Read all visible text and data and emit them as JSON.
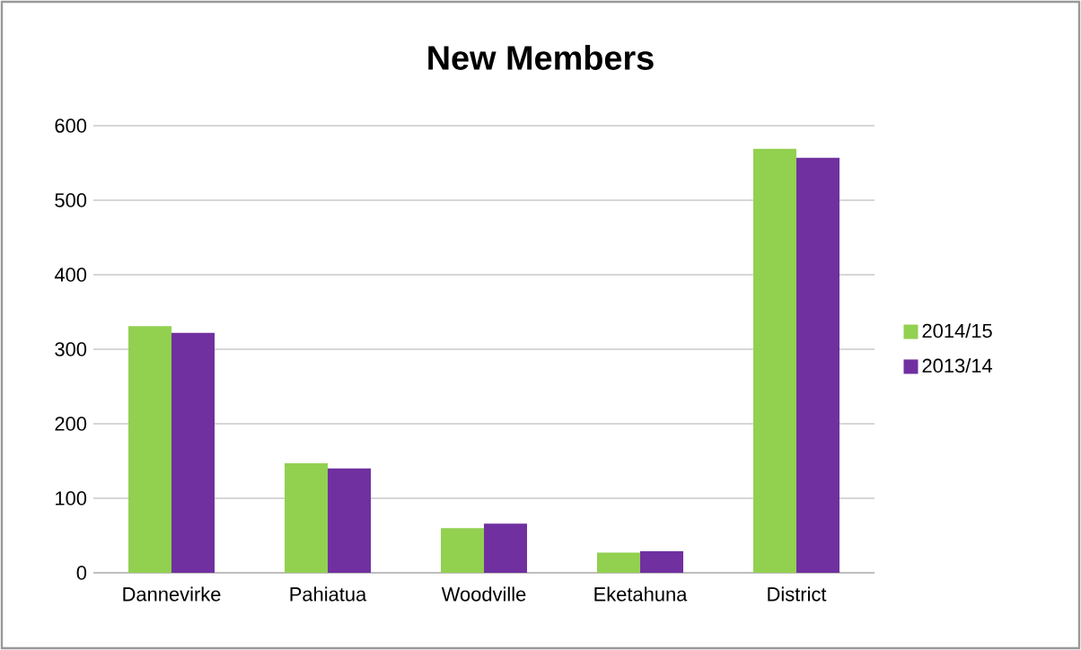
{
  "chart_data": {
    "type": "bar",
    "title": "New Members",
    "categories": [
      "Dannevirke",
      "Pahiatua",
      "Woodville",
      "Eketahuna",
      "District"
    ],
    "series": [
      {
        "name": "2014/15",
        "color": "#92d050",
        "values": [
          331,
          147,
          60,
          27,
          569
        ]
      },
      {
        "name": "2013/14",
        "color": "#7030a0",
        "values": [
          322,
          140,
          66,
          29,
          557
        ]
      }
    ],
    "ylim": [
      0,
      600
    ],
    "yticks": [
      0,
      100,
      200,
      300,
      400,
      500,
      600
    ],
    "grid": "y",
    "legend": "right"
  }
}
